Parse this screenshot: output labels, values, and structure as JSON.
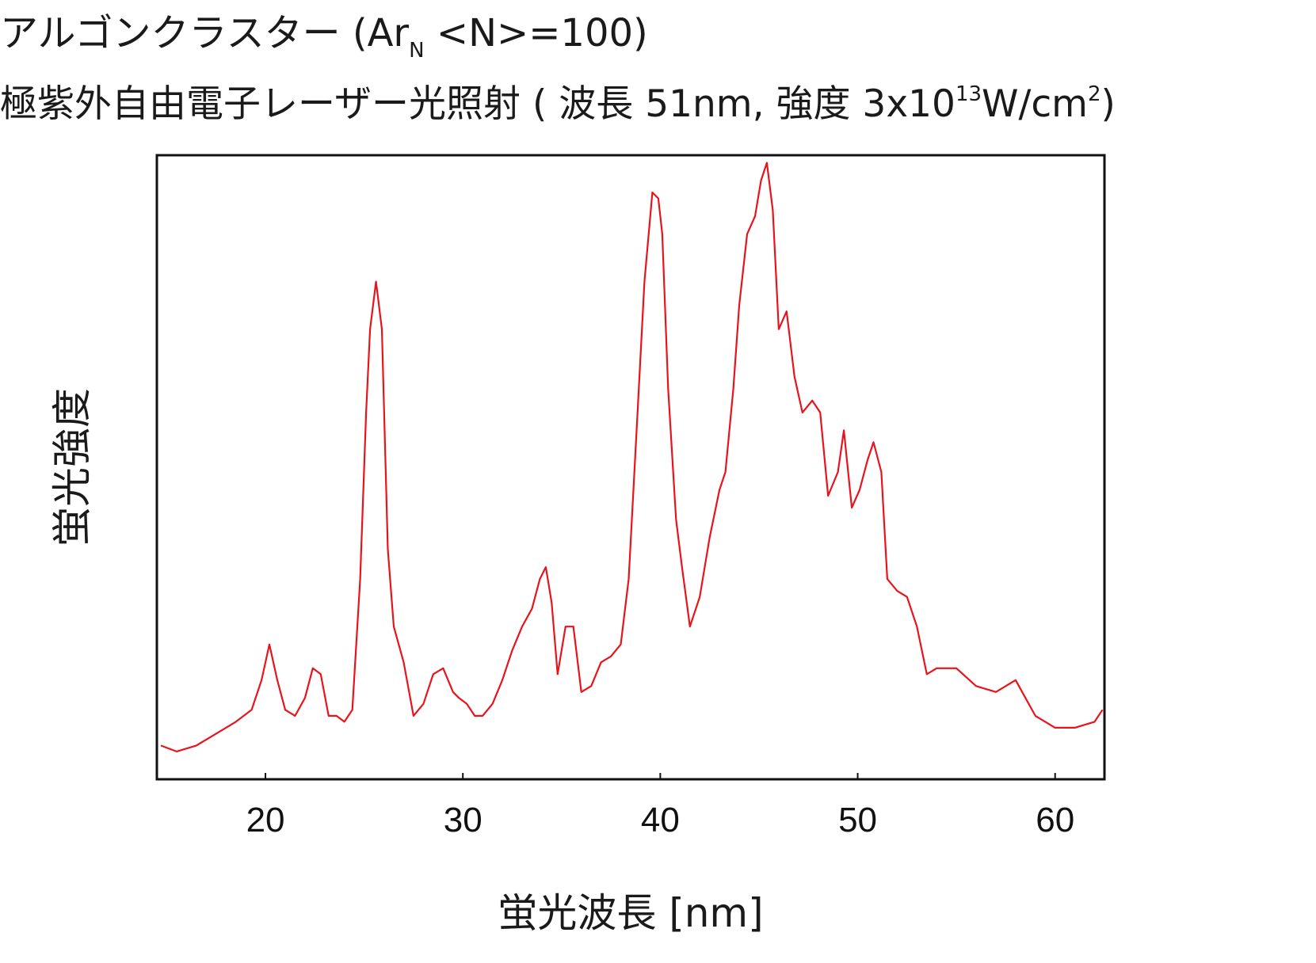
{
  "title": {
    "line1_prefix": "アルゴンクラスター (Ar",
    "line1_sub": "N",
    "line1_suffix": " <N>=100)",
    "line2_prefix": "極紫外自由電子レーザー光照射 ( 波長 51nm, 強度 3x10",
    "line2_sup1": "13",
    "line2_mid": "W/cm",
    "line2_sup2": "2",
    "line2_suffix": ")"
  },
  "chart_data": {
    "type": "line",
    "xlabel": "蛍光波長 [nm]",
    "ylabel": "蛍光強度",
    "xlim": [
      14.5,
      62.5
    ],
    "ylim": [
      0,
      1
    ],
    "x_ticks": [
      20,
      30,
      40,
      50,
      60
    ],
    "x_tick_labels": [
      "20",
      "30",
      "40",
      "50",
      "60"
    ],
    "y_ticks_shown": false,
    "grid": false,
    "legend": "none",
    "series_color": "#e8141c",
    "series": [
      {
        "x": [
          14.7,
          15.5,
          16.5,
          17.5,
          18.5,
          19.3,
          19.8,
          20.2,
          20.6,
          21.0,
          21.5,
          22.0,
          22.4,
          22.8,
          23.2,
          23.6,
          24.0,
          24.4,
          24.8,
          25.1,
          25.3,
          25.6,
          25.9,
          26.2,
          26.5,
          27.0,
          27.5,
          28.0,
          28.5,
          29.0,
          29.5,
          29.8,
          30.2,
          30.6,
          31.0,
          31.5,
          32.0,
          32.5,
          33.0,
          33.5,
          33.9,
          34.2,
          34.5,
          34.8,
          35.2,
          35.6,
          36.0,
          36.5,
          37.0,
          37.5,
          38.0,
          38.4,
          38.8,
          39.2,
          39.6,
          39.9,
          40.1,
          40.4,
          40.8,
          41.1,
          41.5,
          42.0,
          42.5,
          43.0,
          43.3,
          43.7,
          44.0,
          44.4,
          44.8,
          45.1,
          45.4,
          45.7,
          46.0,
          46.4,
          46.8,
          47.2,
          47.7,
          48.1,
          48.5,
          49.0,
          49.3,
          49.7,
          50.1,
          50.5,
          50.8,
          51.2,
          51.5,
          52.0,
          52.5,
          53.0,
          53.5,
          54.0,
          55.0,
          56.0,
          57.0,
          58.0,
          58.5,
          59.0,
          60.0,
          61.0,
          62.0,
          62.4
        ],
        "y": [
          0.02,
          0.01,
          0.02,
          0.04,
          0.06,
          0.08,
          0.13,
          0.19,
          0.13,
          0.08,
          0.07,
          0.1,
          0.15,
          0.14,
          0.07,
          0.07,
          0.06,
          0.08,
          0.3,
          0.58,
          0.72,
          0.8,
          0.72,
          0.35,
          0.22,
          0.16,
          0.07,
          0.09,
          0.14,
          0.15,
          0.11,
          0.1,
          0.09,
          0.07,
          0.07,
          0.09,
          0.13,
          0.18,
          0.22,
          0.25,
          0.3,
          0.32,
          0.26,
          0.14,
          0.22,
          0.22,
          0.11,
          0.12,
          0.16,
          0.17,
          0.19,
          0.3,
          0.55,
          0.8,
          0.95,
          0.94,
          0.88,
          0.62,
          0.4,
          0.32,
          0.22,
          0.27,
          0.37,
          0.45,
          0.48,
          0.62,
          0.76,
          0.88,
          0.91,
          0.97,
          1.0,
          0.92,
          0.72,
          0.75,
          0.64,
          0.58,
          0.6,
          0.58,
          0.44,
          0.48,
          0.55,
          0.42,
          0.45,
          0.5,
          0.53,
          0.48,
          0.3,
          0.28,
          0.27,
          0.22,
          0.14,
          0.15,
          0.15,
          0.12,
          0.11,
          0.13,
          0.1,
          0.07,
          0.05,
          0.05,
          0.06,
          0.08
        ]
      }
    ]
  }
}
